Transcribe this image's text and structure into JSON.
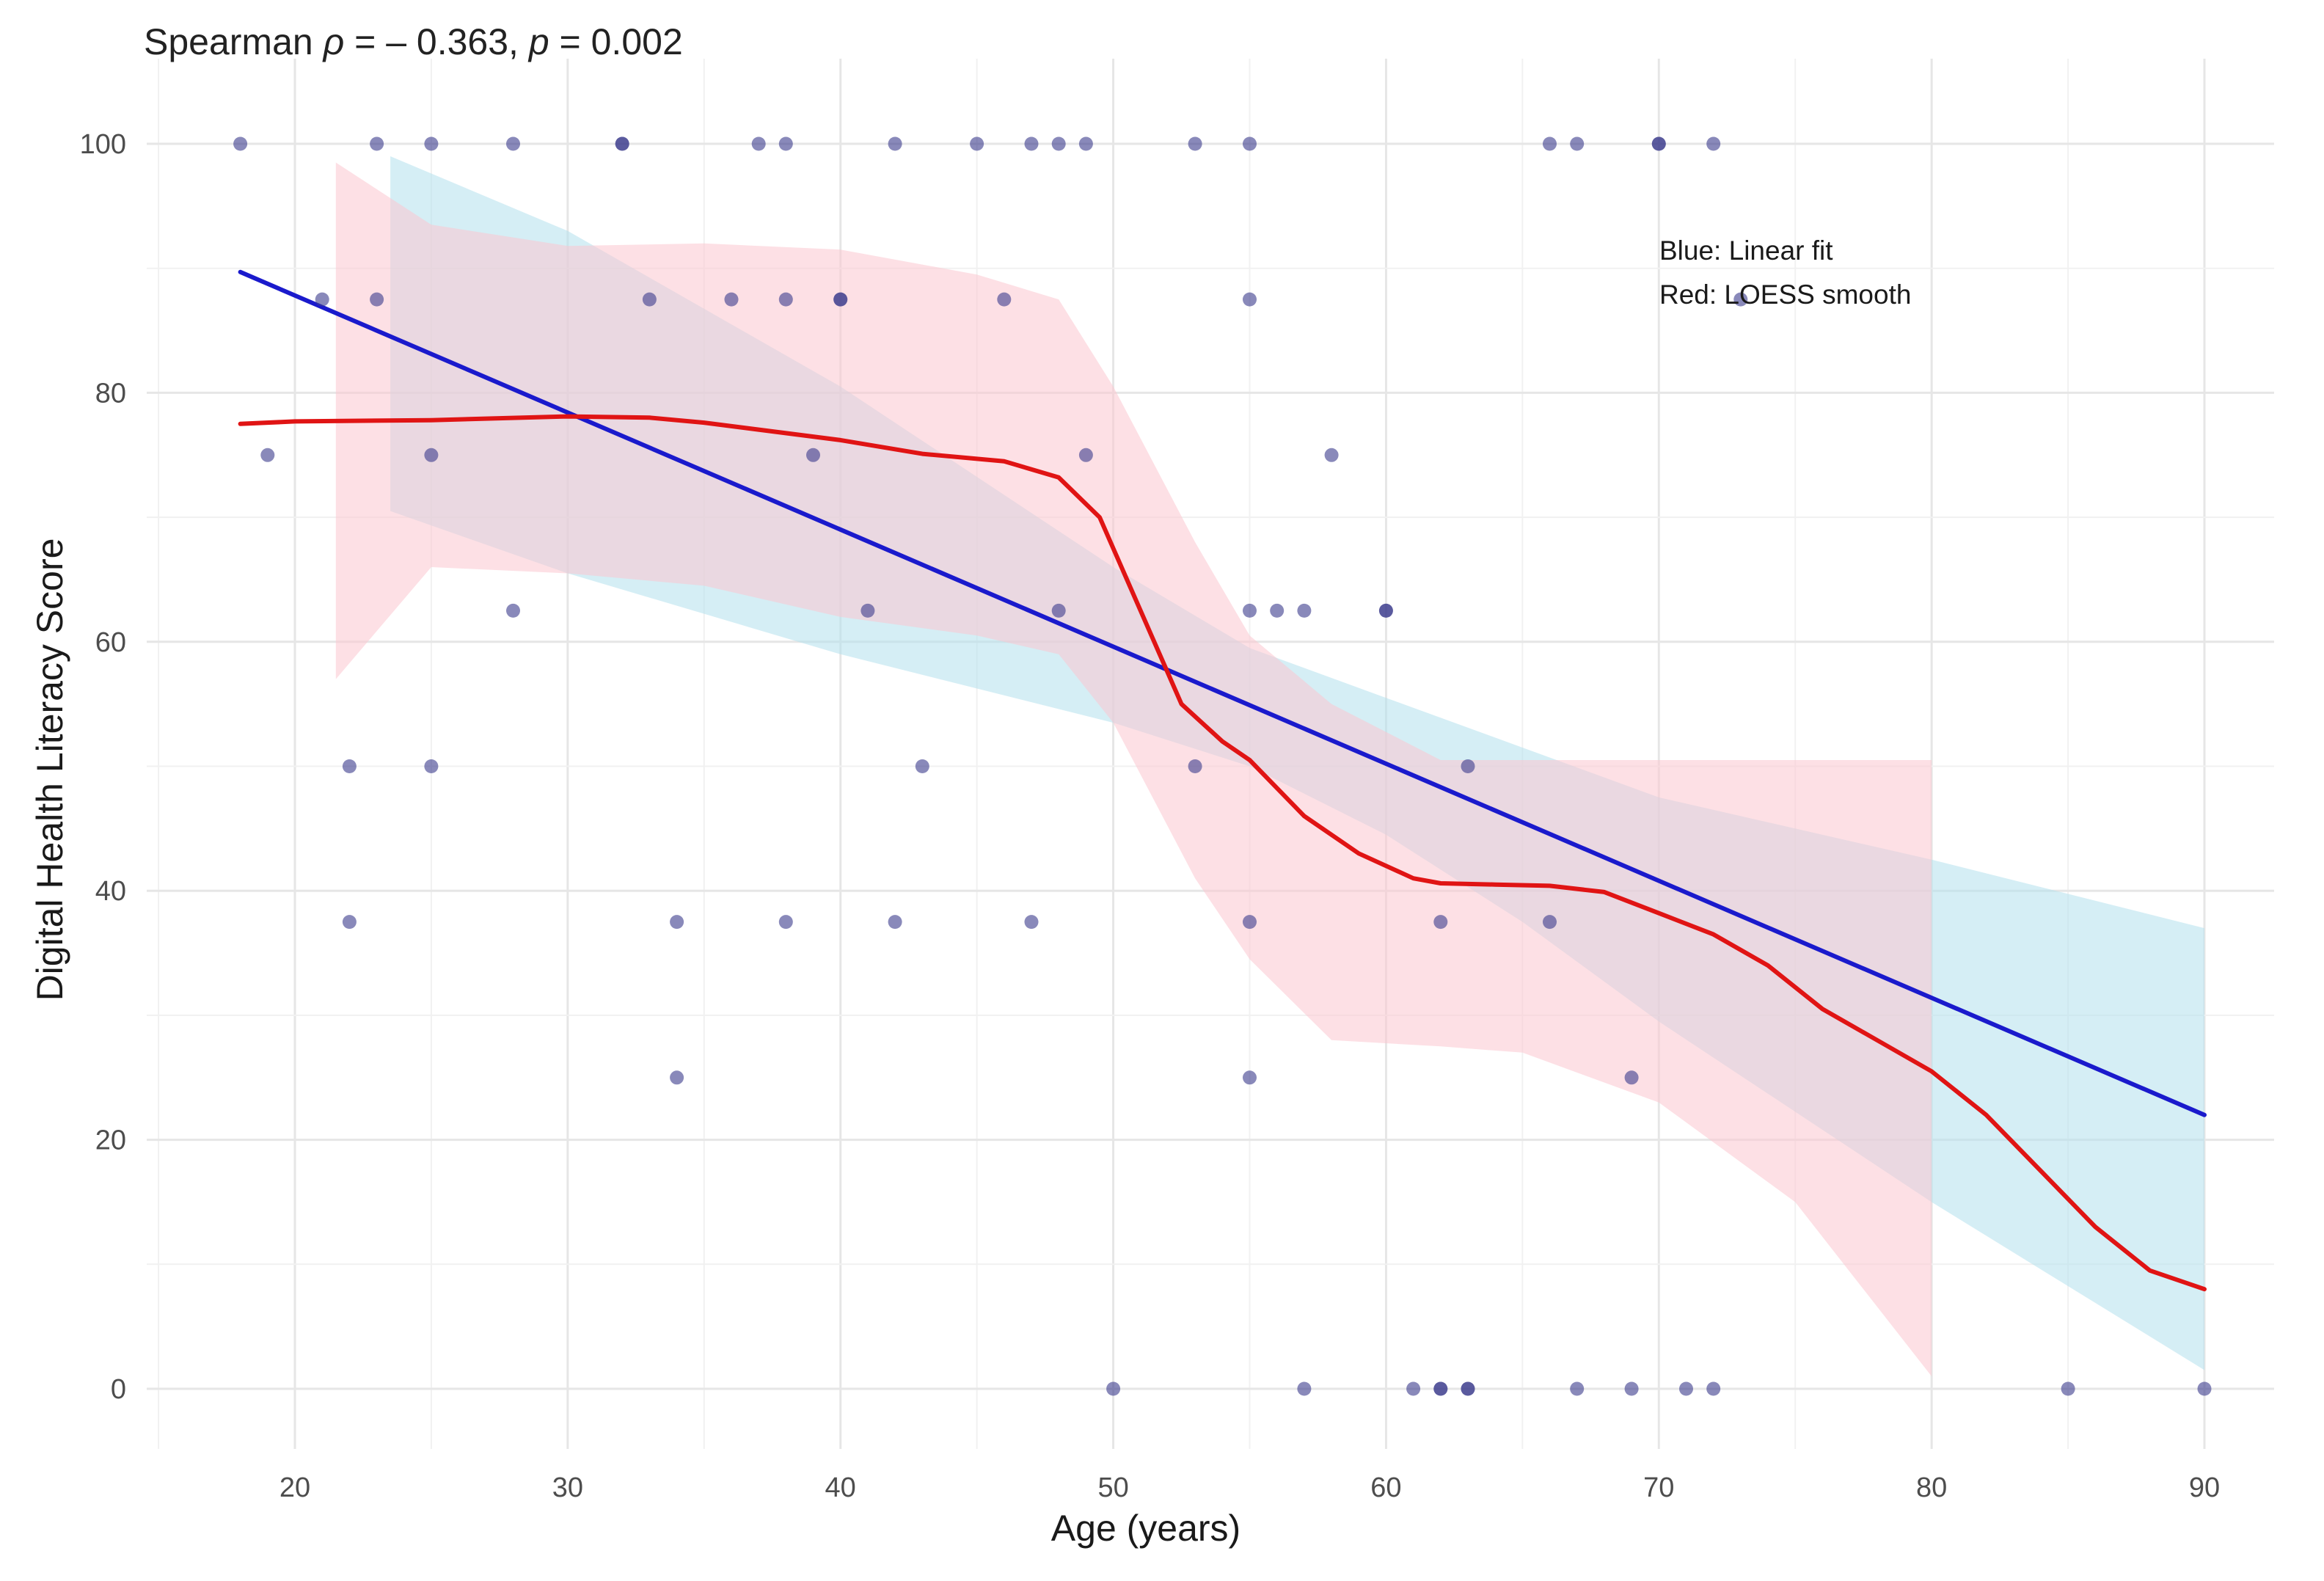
{
  "chart_data": {
    "type": "scatter",
    "title": {
      "prefix": "Spearman ",
      "rho_symbol": "ρ",
      "rho_text": " = – 0.363, ",
      "p_symbol": "p",
      "p_text": " = 0.002"
    },
    "xlabel": "Age (years)",
    "ylabel": "Digital Health Literacy Score",
    "xlim": [
      15,
      92
    ],
    "ylim": [
      -4,
      105
    ],
    "x_ticks": [
      20,
      30,
      40,
      50,
      60,
      70,
      80,
      90
    ],
    "y_ticks": [
      0,
      20,
      40,
      60,
      80,
      100
    ],
    "grid": true,
    "annotations": [
      "Blue: Linear fit",
      "Red: LOESS smooth"
    ],
    "colors": {
      "points": "#3a3a8c",
      "linear_line": "#1a1acc",
      "linear_band": "#b3e0ec",
      "loess_line": "#e01414",
      "loess_band": "#fcc6d0"
    },
    "points": [
      [
        18,
        100
      ],
      [
        23,
        100
      ],
      [
        25,
        100
      ],
      [
        28,
        100
      ],
      [
        32,
        100
      ],
      [
        32,
        100
      ],
      [
        37,
        100
      ],
      [
        38,
        100
      ],
      [
        42,
        100
      ],
      [
        45,
        100
      ],
      [
        47,
        100
      ],
      [
        48,
        100
      ],
      [
        49,
        100
      ],
      [
        53,
        100
      ],
      [
        55,
        100
      ],
      [
        66,
        100
      ],
      [
        67,
        100
      ],
      [
        70,
        100
      ],
      [
        70,
        100
      ],
      [
        72,
        100
      ],
      [
        21,
        87.5
      ],
      [
        23,
        87.5
      ],
      [
        33,
        87.5
      ],
      [
        36,
        87.5
      ],
      [
        38,
        87.5
      ],
      [
        40,
        87.5
      ],
      [
        40,
        87.5
      ],
      [
        46,
        87.5
      ],
      [
        55,
        87.5
      ],
      [
        73,
        87.5
      ],
      [
        19,
        75
      ],
      [
        25,
        75
      ],
      [
        39,
        75
      ],
      [
        49,
        75
      ],
      [
        58,
        75
      ],
      [
        28,
        62.5
      ],
      [
        41,
        62.5
      ],
      [
        48,
        62.5
      ],
      [
        55,
        62.5
      ],
      [
        56,
        62.5
      ],
      [
        57,
        62.5
      ],
      [
        60,
        62.5
      ],
      [
        60,
        62.5
      ],
      [
        22,
        50
      ],
      [
        25,
        50
      ],
      [
        43,
        50
      ],
      [
        53,
        50
      ],
      [
        63,
        50
      ],
      [
        22,
        37.5
      ],
      [
        34,
        37.5
      ],
      [
        38,
        37.5
      ],
      [
        42,
        37.5
      ],
      [
        47,
        37.5
      ],
      [
        55,
        37.5
      ],
      [
        62,
        37.5
      ],
      [
        66,
        37.5
      ],
      [
        34,
        25
      ],
      [
        55,
        25
      ],
      [
        69,
        25
      ],
      [
        50,
        0
      ],
      [
        57,
        0
      ],
      [
        61,
        0
      ],
      [
        62,
        0
      ],
      [
        62,
        0
      ],
      [
        63,
        0
      ],
      [
        63,
        0
      ],
      [
        67,
        0
      ],
      [
        69,
        0
      ],
      [
        71,
        0
      ],
      [
        72,
        0
      ],
      [
        85,
        0
      ],
      [
        90,
        0
      ]
    ],
    "series": [
      {
        "name": "Linear fit",
        "x": [
          18,
          90
        ],
        "y": [
          89.7,
          22.0
        ],
        "band_x": [
          23.5,
          30,
          40,
          50,
          55,
          60,
          65,
          70,
          80,
          90
        ],
        "band_upper": [
          99,
          93,
          80.5,
          66,
          59.5,
          55.5,
          51.5,
          47.5,
          42.5,
          37
        ],
        "band_lower": [
          70.5,
          65.5,
          59,
          53.5,
          50,
          44.5,
          37.5,
          29.5,
          15,
          1.5
        ]
      },
      {
        "name": "LOESS smooth",
        "x": [
          18,
          20,
          25,
          30,
          33,
          35,
          40,
          43,
          46,
          48,
          49.5,
          51,
          52.5,
          54,
          55,
          57,
          59,
          61,
          62,
          64,
          66,
          68,
          70,
          72,
          74,
          76,
          78,
          80,
          82,
          84,
          86,
          88,
          90
        ],
        "y": [
          77.5,
          77.7,
          77.8,
          78.1,
          78.0,
          77.6,
          76.2,
          75.1,
          74.5,
          73.2,
          70.0,
          62.5,
          55.0,
          52.0,
          50.5,
          46.0,
          43.0,
          41.0,
          40.6,
          40.5,
          40.4,
          39.9,
          38.2,
          36.5,
          34.0,
          30.5,
          28.0,
          25.5,
          22.0,
          17.5,
          13.0,
          9.5,
          8.0
        ],
        "band_x": [
          21.5,
          25,
          30,
          35,
          40,
          45,
          48,
          50,
          53,
          55,
          58,
          62,
          65,
          70,
          75,
          80
        ],
        "band_upper": [
          98.5,
          93.5,
          91.8,
          92.0,
          91.5,
          89.5,
          87.5,
          80.5,
          68.0,
          60.5,
          55.0,
          50.5,
          50.5,
          50.5,
          50.5,
          50.5
        ],
        "band_lower": [
          57,
          66,
          65.5,
          64.5,
          62.0,
          60.5,
          59.0,
          53.5,
          41.0,
          34.5,
          28.0,
          27.5,
          27.0,
          23.0,
          15.0,
          1.0
        ]
      }
    ]
  }
}
